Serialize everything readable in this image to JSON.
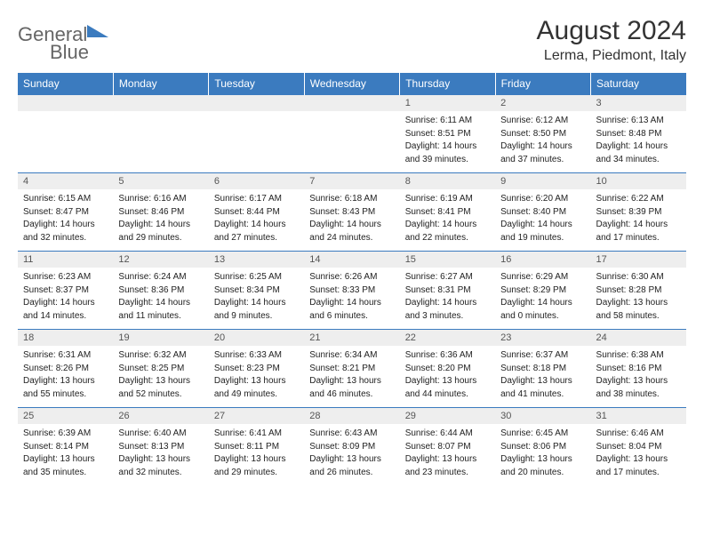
{
  "logo": {
    "text1": "General",
    "text2": "Blue"
  },
  "title": "August 2024",
  "location": "Lerma, Piedmont, Italy",
  "dayHeaders": [
    "Sunday",
    "Monday",
    "Tuesday",
    "Wednesday",
    "Thursday",
    "Friday",
    "Saturday"
  ],
  "colors": {
    "headerBg": "#3b7bbf",
    "headerText": "#ffffff",
    "dayNumBg": "#eeeeee",
    "border": "#3b7bbf"
  },
  "weeks": [
    [
      null,
      null,
      null,
      null,
      {
        "n": "1",
        "rise": "Sunrise: 6:11 AM",
        "set": "Sunset: 8:51 PM",
        "day1": "Daylight: 14 hours",
        "day2": "and 39 minutes."
      },
      {
        "n": "2",
        "rise": "Sunrise: 6:12 AM",
        "set": "Sunset: 8:50 PM",
        "day1": "Daylight: 14 hours",
        "day2": "and 37 minutes."
      },
      {
        "n": "3",
        "rise": "Sunrise: 6:13 AM",
        "set": "Sunset: 8:48 PM",
        "day1": "Daylight: 14 hours",
        "day2": "and 34 minutes."
      }
    ],
    [
      {
        "n": "4",
        "rise": "Sunrise: 6:15 AM",
        "set": "Sunset: 8:47 PM",
        "day1": "Daylight: 14 hours",
        "day2": "and 32 minutes."
      },
      {
        "n": "5",
        "rise": "Sunrise: 6:16 AM",
        "set": "Sunset: 8:46 PM",
        "day1": "Daylight: 14 hours",
        "day2": "and 29 minutes."
      },
      {
        "n": "6",
        "rise": "Sunrise: 6:17 AM",
        "set": "Sunset: 8:44 PM",
        "day1": "Daylight: 14 hours",
        "day2": "and 27 minutes."
      },
      {
        "n": "7",
        "rise": "Sunrise: 6:18 AM",
        "set": "Sunset: 8:43 PM",
        "day1": "Daylight: 14 hours",
        "day2": "and 24 minutes."
      },
      {
        "n": "8",
        "rise": "Sunrise: 6:19 AM",
        "set": "Sunset: 8:41 PM",
        "day1": "Daylight: 14 hours",
        "day2": "and 22 minutes."
      },
      {
        "n": "9",
        "rise": "Sunrise: 6:20 AM",
        "set": "Sunset: 8:40 PM",
        "day1": "Daylight: 14 hours",
        "day2": "and 19 minutes."
      },
      {
        "n": "10",
        "rise": "Sunrise: 6:22 AM",
        "set": "Sunset: 8:39 PM",
        "day1": "Daylight: 14 hours",
        "day2": "and 17 minutes."
      }
    ],
    [
      {
        "n": "11",
        "rise": "Sunrise: 6:23 AM",
        "set": "Sunset: 8:37 PM",
        "day1": "Daylight: 14 hours",
        "day2": "and 14 minutes."
      },
      {
        "n": "12",
        "rise": "Sunrise: 6:24 AM",
        "set": "Sunset: 8:36 PM",
        "day1": "Daylight: 14 hours",
        "day2": "and 11 minutes."
      },
      {
        "n": "13",
        "rise": "Sunrise: 6:25 AM",
        "set": "Sunset: 8:34 PM",
        "day1": "Daylight: 14 hours",
        "day2": "and 9 minutes."
      },
      {
        "n": "14",
        "rise": "Sunrise: 6:26 AM",
        "set": "Sunset: 8:33 PM",
        "day1": "Daylight: 14 hours",
        "day2": "and 6 minutes."
      },
      {
        "n": "15",
        "rise": "Sunrise: 6:27 AM",
        "set": "Sunset: 8:31 PM",
        "day1": "Daylight: 14 hours",
        "day2": "and 3 minutes."
      },
      {
        "n": "16",
        "rise": "Sunrise: 6:29 AM",
        "set": "Sunset: 8:29 PM",
        "day1": "Daylight: 14 hours",
        "day2": "and 0 minutes."
      },
      {
        "n": "17",
        "rise": "Sunrise: 6:30 AM",
        "set": "Sunset: 8:28 PM",
        "day1": "Daylight: 13 hours",
        "day2": "and 58 minutes."
      }
    ],
    [
      {
        "n": "18",
        "rise": "Sunrise: 6:31 AM",
        "set": "Sunset: 8:26 PM",
        "day1": "Daylight: 13 hours",
        "day2": "and 55 minutes."
      },
      {
        "n": "19",
        "rise": "Sunrise: 6:32 AM",
        "set": "Sunset: 8:25 PM",
        "day1": "Daylight: 13 hours",
        "day2": "and 52 minutes."
      },
      {
        "n": "20",
        "rise": "Sunrise: 6:33 AM",
        "set": "Sunset: 8:23 PM",
        "day1": "Daylight: 13 hours",
        "day2": "and 49 minutes."
      },
      {
        "n": "21",
        "rise": "Sunrise: 6:34 AM",
        "set": "Sunset: 8:21 PM",
        "day1": "Daylight: 13 hours",
        "day2": "and 46 minutes."
      },
      {
        "n": "22",
        "rise": "Sunrise: 6:36 AM",
        "set": "Sunset: 8:20 PM",
        "day1": "Daylight: 13 hours",
        "day2": "and 44 minutes."
      },
      {
        "n": "23",
        "rise": "Sunrise: 6:37 AM",
        "set": "Sunset: 8:18 PM",
        "day1": "Daylight: 13 hours",
        "day2": "and 41 minutes."
      },
      {
        "n": "24",
        "rise": "Sunrise: 6:38 AM",
        "set": "Sunset: 8:16 PM",
        "day1": "Daylight: 13 hours",
        "day2": "and 38 minutes."
      }
    ],
    [
      {
        "n": "25",
        "rise": "Sunrise: 6:39 AM",
        "set": "Sunset: 8:14 PM",
        "day1": "Daylight: 13 hours",
        "day2": "and 35 minutes."
      },
      {
        "n": "26",
        "rise": "Sunrise: 6:40 AM",
        "set": "Sunset: 8:13 PM",
        "day1": "Daylight: 13 hours",
        "day2": "and 32 minutes."
      },
      {
        "n": "27",
        "rise": "Sunrise: 6:41 AM",
        "set": "Sunset: 8:11 PM",
        "day1": "Daylight: 13 hours",
        "day2": "and 29 minutes."
      },
      {
        "n": "28",
        "rise": "Sunrise: 6:43 AM",
        "set": "Sunset: 8:09 PM",
        "day1": "Daylight: 13 hours",
        "day2": "and 26 minutes."
      },
      {
        "n": "29",
        "rise": "Sunrise: 6:44 AM",
        "set": "Sunset: 8:07 PM",
        "day1": "Daylight: 13 hours",
        "day2": "and 23 minutes."
      },
      {
        "n": "30",
        "rise": "Sunrise: 6:45 AM",
        "set": "Sunset: 8:06 PM",
        "day1": "Daylight: 13 hours",
        "day2": "and 20 minutes."
      },
      {
        "n": "31",
        "rise": "Sunrise: 6:46 AM",
        "set": "Sunset: 8:04 PM",
        "day1": "Daylight: 13 hours",
        "day2": "and 17 minutes."
      }
    ]
  ]
}
